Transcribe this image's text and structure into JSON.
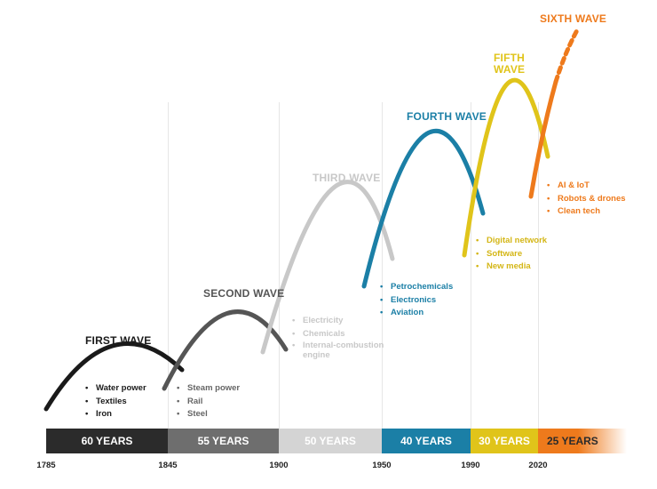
{
  "waves": [
    {
      "title": "FIRST WAVE",
      "color": "#1a1a1a",
      "items": [
        "Water power",
        "Textiles",
        "Iron"
      ]
    },
    {
      "title": "SECOND WAVE",
      "color": "#555555",
      "items": [
        "Steam power",
        "Rail",
        "Steel"
      ]
    },
    {
      "title": "THIRD WAVE",
      "color": "#c8c8c8",
      "items": [
        "Electricity",
        "Chemicals",
        "Internal-combustion engine"
      ]
    },
    {
      "title": "FOURTH WAVE",
      "color": "#1b7fa6",
      "items": [
        "Petrochemicals",
        "Electronics",
        "Aviation"
      ]
    },
    {
      "title": "FIFTH WAVE",
      "color": "#e0c41a",
      "items": [
        "Digital network",
        "Software",
        "New media"
      ]
    },
    {
      "title": "SIXTH WAVE",
      "color": "#ee7a1c",
      "items": [
        "AI & IoT",
        "Robots & drones",
        "Clean tech"
      ]
    }
  ],
  "timeline": {
    "segments": [
      {
        "label": "60 YEARS",
        "color": "#2b2b2b",
        "text_color": "#ffffff"
      },
      {
        "label": "55 YEARS",
        "color": "#6e6e6e",
        "text_color": "#ffffff"
      },
      {
        "label": "50 YEARS",
        "color": "#d4d4d4",
        "text_color": "#ffffff"
      },
      {
        "label": "40 YEARS",
        "color": "#1b7fa6",
        "text_color": "#ffffff"
      },
      {
        "label": "30 YEARS",
        "color": "#e0c41a",
        "text_color": "#ffffff"
      },
      {
        "label": "25 YEARS",
        "color": "#ee7a1c",
        "text_color": "#2b2b2b"
      }
    ],
    "years": [
      "1785",
      "1845",
      "1900",
      "1950",
      "1990",
      "2020"
    ]
  }
}
